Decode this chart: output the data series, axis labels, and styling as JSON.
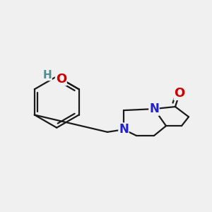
{
  "bg_color": "#f0f0f0",
  "bond_color": "#1a1a1a",
  "N_color": "#2020cc",
  "O_color": "#cc0000",
  "H_color": "#4a9090",
  "bond_width": 1.6,
  "figsize": [
    3.0,
    3.0
  ],
  "dpi": 100,
  "xlim": [
    -2.5,
    1.8
  ],
  "ylim": [
    -1.1,
    1.1
  ]
}
